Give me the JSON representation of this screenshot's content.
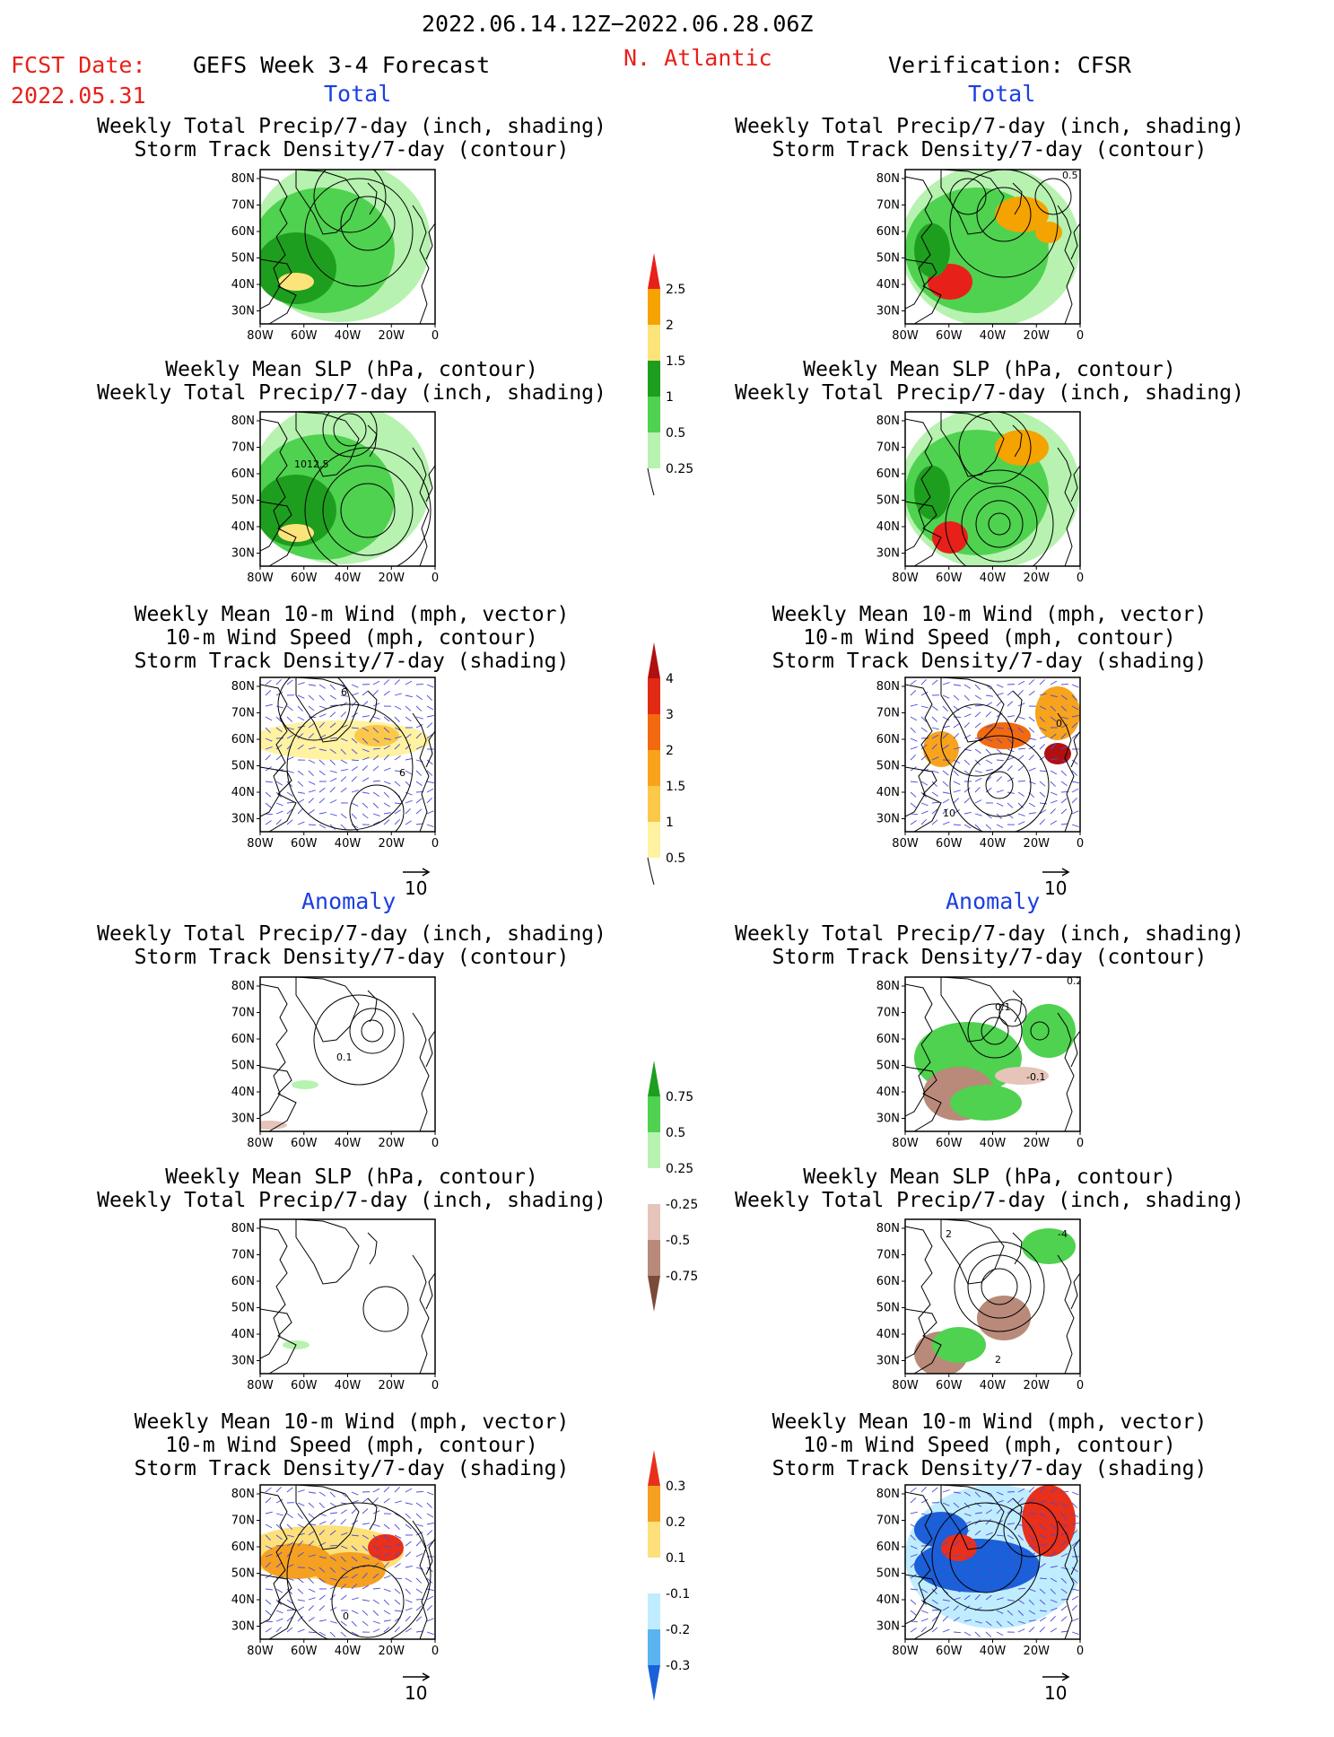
{
  "header": {
    "period": "2022.06.14.12Z−2022.06.28.06Z",
    "fcst_label": "FCST Date:",
    "fcst_date": "2022.05.31",
    "forecast_name": "GEFS Week 3-4 Forecast",
    "region": "N. Atlantic",
    "verification": "Verification: CFSR"
  },
  "sections": {
    "total": "Total",
    "anomaly": "Anomaly"
  },
  "titles": {
    "precip_track": [
      "Weekly Total Precip/7-day (inch, shading)",
      "Storm Track Density/7-day (contour)"
    ],
    "slp_precip": [
      "Weekly Mean SLP (hPa, contour)",
      "Weekly Total Precip/7-day (inch, shading)"
    ],
    "wind": [
      "Weekly Mean 10-m Wind (mph, vector)",
      "10-m Wind Speed (mph, contour)",
      "Storm Track Density/7-day (shading)"
    ]
  },
  "axes": {
    "lat": [
      "80N",
      "70N",
      "60N",
      "50N",
      "40N",
      "30N"
    ],
    "lon": [
      "80W",
      "60W",
      "40W",
      "20W",
      "0"
    ]
  },
  "vector_ref": "10",
  "contour_labels": {
    "slp_total_left": "1012.5",
    "track_total_right": "0.5",
    "wind_total_left": "6",
    "wind_total_right_a": "10",
    "wind_total_right_b": "0",
    "track_anom_left": "0.1",
    "track_anom_right_a": "0.2",
    "track_anom_right_b": "0.1",
    "track_anom_right_c": "-0.1",
    "slp_anom_right_a": "2",
    "slp_anom_right_b": "-4",
    "slp_anom_right_c": "2",
    "wind_anom_left": "0"
  },
  "colorbars": {
    "precip_total": {
      "labels": [
        "2.5",
        "2",
        "1.5",
        "1",
        "0.5",
        "0.25"
      ],
      "colors": [
        "#e8201a",
        "#f5a300",
        "#fde47a",
        "#1e9e1e",
        "#4fd24f",
        "#b7f2b0"
      ]
    },
    "track_total": {
      "labels": [
        "4",
        "3",
        "2",
        "1.5",
        "1",
        "0.5"
      ],
      "colors": [
        "#b01010",
        "#e02a14",
        "#f26a10",
        "#f8a31c",
        "#fbc84a",
        "#fff2a0"
      ]
    },
    "precip_anom": {
      "labels": [
        "0.75",
        "0.5",
        "0.25",
        "-0.25",
        "-0.5",
        "-0.75"
      ],
      "colors": [
        "#1e9e1e",
        "#4fd24f",
        "#b7f2b0",
        "#ffffff",
        "#e6c4ba",
        "#b98a7a",
        "#7a4a3a"
      ]
    },
    "track_anom": {
      "labels": [
        "0.3",
        "0.2",
        "0.1",
        "-0.1",
        "-0.2",
        "-0.3"
      ],
      "colors": [
        "#e8301a",
        "#f5a020",
        "#fde07a",
        "#ffffff",
        "#c0ecff",
        "#5ab4f0",
        "#1a60d8"
      ]
    }
  }
}
